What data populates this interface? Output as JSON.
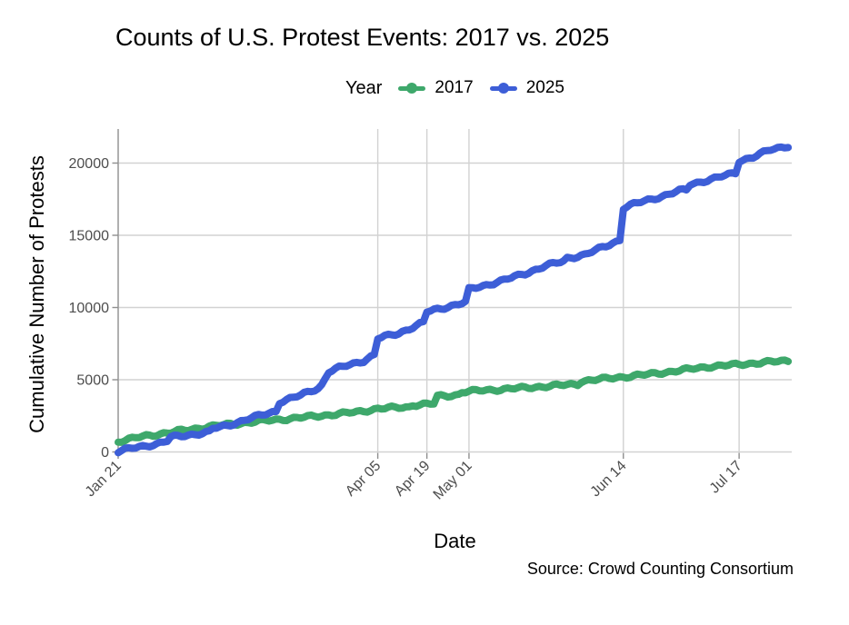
{
  "title": "Counts of U.S. Protest Events: 2017 vs. 2025",
  "legend": {
    "title": "Year"
  },
  "axes": {
    "x_title": "Date",
    "y_title": "Cumulative Number of Protests"
  },
  "caption": "Source: Crowd Counting Consortium",
  "palette": {
    "background": "#ffffff",
    "gridline": "#d2d2d2",
    "axis_line": "#a0a0a0",
    "tick_mark": "#8f8f8f",
    "tick_label": "#4d4d4d",
    "text": "#000000",
    "series_2017": "#3ea86b",
    "series_2025": "#3d5ed7"
  },
  "chart_data": {
    "type": "line",
    "title": "Counts of U.S. Protest Events: 2017 vs. 2025",
    "xlabel": "Date",
    "ylabel": "Cumulative Number of Protests",
    "grid": true,
    "legend_position": "top",
    "x_axis": {
      "unit": "days since Jan 21",
      "lim": [
        0,
        192
      ],
      "ticks": [
        {
          "day": 0,
          "label": "Jan 21"
        },
        {
          "day": 74,
          "label": "Apr 05"
        },
        {
          "day": 88,
          "label": "Apr 19"
        },
        {
          "day": 100,
          "label": "May 01"
        },
        {
          "day": 144,
          "label": "Jun 14"
        },
        {
          "day": 177,
          "label": "Jul 17"
        }
      ]
    },
    "y_axis": {
      "lim": [
        0,
        21500
      ],
      "ticks": [
        {
          "value": 0,
          "label": "0"
        },
        {
          "value": 5000,
          "label": "5000"
        },
        {
          "value": 10000,
          "label": "10000"
        },
        {
          "value": 15000,
          "label": "15000"
        },
        {
          "value": 20000,
          "label": "20000"
        }
      ]
    },
    "series": [
      {
        "name": "2017",
        "color": "#3ea86b",
        "points": [
          [
            0,
            720
          ],
          [
            3,
            870
          ],
          [
            8,
            1120
          ],
          [
            14,
            1320
          ],
          [
            26,
            1760
          ],
          [
            40,
            2120
          ],
          [
            54,
            2420
          ],
          [
            68,
            2760
          ],
          [
            74,
            3000
          ],
          [
            83,
            3110
          ],
          [
            84,
            3260
          ],
          [
            90,
            3330
          ],
          [
            91,
            3850
          ],
          [
            97,
            3960
          ],
          [
            98,
            4150
          ],
          [
            104,
            4260
          ],
          [
            110,
            4350
          ],
          [
            117,
            4460
          ],
          [
            124,
            4580
          ],
          [
            131,
            4700
          ],
          [
            132,
            4900
          ],
          [
            138,
            5050
          ],
          [
            144,
            5200
          ],
          [
            150,
            5340
          ],
          [
            155,
            5490
          ],
          [
            162,
            5700
          ],
          [
            168,
            5900
          ],
          [
            174,
            6000
          ],
          [
            177,
            6060
          ],
          [
            183,
            6180
          ],
          [
            191,
            6320
          ]
        ]
      },
      {
        "name": "2025",
        "color": "#3d5ed7",
        "points": [
          [
            0,
            30
          ],
          [
            4,
            260
          ],
          [
            11,
            560
          ],
          [
            14,
            760
          ],
          [
            15,
            1010
          ],
          [
            26,
            1370
          ],
          [
            27,
            1620
          ],
          [
            31,
            1820
          ],
          [
            38,
            2360
          ],
          [
            45,
            2820
          ],
          [
            46,
            3460
          ],
          [
            52,
            3920
          ],
          [
            57,
            4420
          ],
          [
            58,
            4620
          ],
          [
            60,
            5560
          ],
          [
            63,
            5820
          ],
          [
            70,
            6320
          ],
          [
            73,
            6720
          ],
          [
            74,
            7860
          ],
          [
            80,
            8220
          ],
          [
            87,
            8960
          ],
          [
            88,
            9700
          ],
          [
            94,
            10060
          ],
          [
            99,
            10360
          ],
          [
            100,
            11250
          ],
          [
            105,
            11560
          ],
          [
            110,
            11900
          ],
          [
            116,
            12350
          ],
          [
            122,
            12900
          ],
          [
            127,
            13200
          ],
          [
            128,
            13420
          ],
          [
            133,
            13650
          ],
          [
            139,
            14250
          ],
          [
            143,
            14680
          ],
          [
            144,
            16900
          ],
          [
            147,
            17160
          ],
          [
            150,
            17360
          ],
          [
            155,
            17700
          ],
          [
            160,
            18080
          ],
          [
            162,
            18140
          ],
          [
            163,
            18520
          ],
          [
            170,
            18940
          ],
          [
            176,
            19320
          ],
          [
            177,
            20150
          ],
          [
            181,
            20420
          ],
          [
            183,
            20620
          ],
          [
            186,
            20920
          ],
          [
            191,
            21200
          ]
        ]
      }
    ]
  }
}
